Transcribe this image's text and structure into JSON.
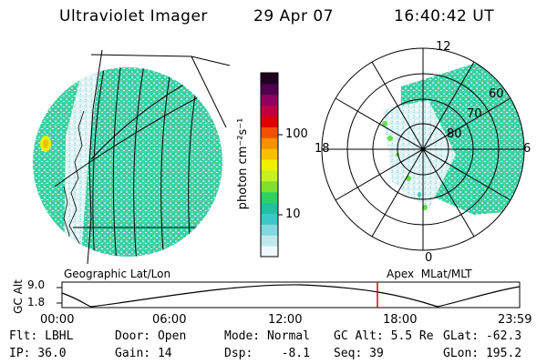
{
  "header": {
    "instrument": "Ultraviolet Imager",
    "date": "29 Apr 07",
    "time": "16:40:42 UT"
  },
  "colorbar": {
    "unit_label": "photon cm⁻²s⁻¹",
    "ticks": [
      "100",
      "10"
    ],
    "colors": [
      "#f0f8ff",
      "#bfe8ec",
      "#7fd9de",
      "#3cc8c8",
      "#20c0a0",
      "#30d060",
      "#80e030",
      "#c8f020",
      "#f0f000",
      "#f8c000",
      "#f89000",
      "#f05000",
      "#e00000",
      "#c00040",
      "#900060",
      "#500050",
      "#200020"
    ]
  },
  "left_panel": {
    "caption": "Geographic Lat/Lon"
  },
  "right_panel": {
    "caption": "Apex  MLat/MLT",
    "mlt_labels": [
      "12",
      "18",
      "6",
      "0"
    ],
    "lat_labels": [
      "60",
      "70",
      "80"
    ]
  },
  "orbit_plot": {
    "ylabel": "GC Alt",
    "yticks": [
      "9.0",
      "1.8"
    ],
    "xticks": [
      "00:00",
      "06:00",
      "12:00",
      "18:00",
      "23:59"
    ],
    "marker_color": "#e00000"
  },
  "status": {
    "flt": "Flt: LBHL",
    "ip": "IP: 36.0",
    "door": "Door: Open",
    "gain": "Gain: 14",
    "mode": "Mode: Normal",
    "dsp": "Dsp:    -8.1",
    "gc_alt": "GC Alt: 5.5 Re",
    "seq": "Seq: 39",
    "glat": "GLat: -62.3",
    "glon": "GLon: 195.2"
  }
}
